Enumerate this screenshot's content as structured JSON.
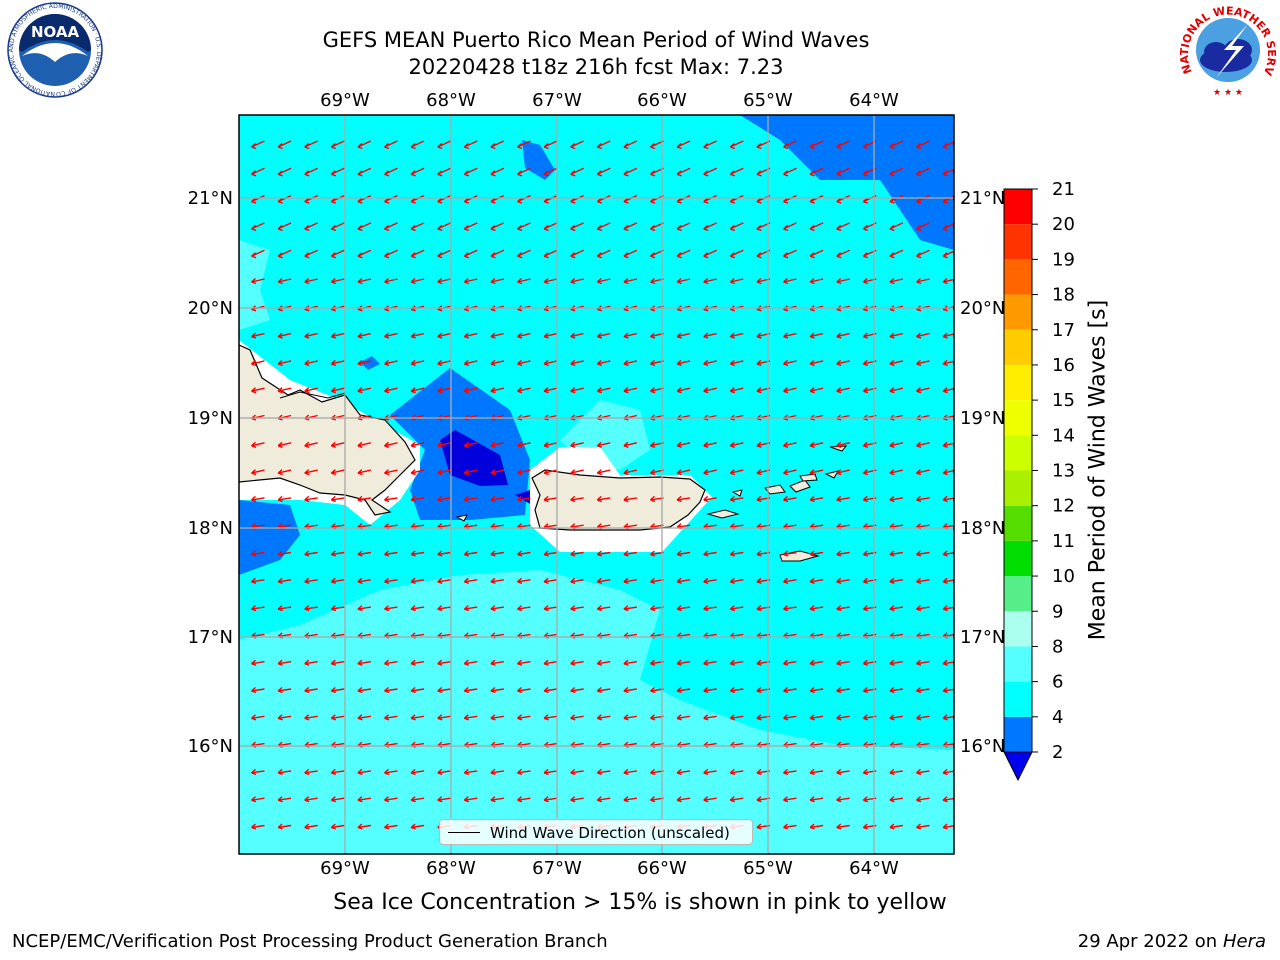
{
  "header": {
    "title_line1": "GEFS MEAN Puerto Rico Mean Period of Wind Waves",
    "title_line2": "20220428 t18z 216h fcst   Max: 7.23"
  },
  "map": {
    "lon_labels": [
      "69°W",
      "68°W",
      "67°W",
      "66°W",
      "65°W",
      "64°W"
    ],
    "lat_labels": [
      "21°N",
      "20°N",
      "19°N",
      "18°N",
      "17°N",
      "16°N"
    ],
    "legend_label": "Wind Wave Direction (unscaled)",
    "arrow_color": "#ff0000",
    "sea_color": "#00ffff",
    "land_color": "#efecdc"
  },
  "colorbar": {
    "title": "Mean Period of Wind Waves [s]",
    "ticks": [
      "2",
      "4",
      "6",
      "8",
      "9",
      "10",
      "11",
      "12",
      "13",
      "14",
      "15",
      "16",
      "17",
      "18",
      "19",
      "20",
      "21"
    ],
    "colors": [
      "#0000ee",
      "#0077ff",
      "#00ffff",
      "#55ffff",
      "#aaffee",
      "#55ee88",
      "#00dd00",
      "#55dd00",
      "#aaee00",
      "#ccff00",
      "#eeff00",
      "#ffee00",
      "#ffcc00",
      "#ff9900",
      "#ff6600",
      "#ff3300",
      "#ff0000"
    ]
  },
  "subtitle": "Sea Ice Concentration > 15% is shown in pink to yellow",
  "footer": {
    "left": "NCEP/EMC/Verification Post Processing Product Generation Branch",
    "date": "29 Apr 2022 on ",
    "machine": "Hera"
  },
  "logos": {
    "noaa": "NOAA",
    "noaa_ring": "NATIONAL OCEANIC AND ATMOSPHERIC ADMINISTRATION · U.S. DEPARTMENT OF COMMERCE",
    "nws_ring": "NATIONAL WEATHER SERVICE"
  }
}
